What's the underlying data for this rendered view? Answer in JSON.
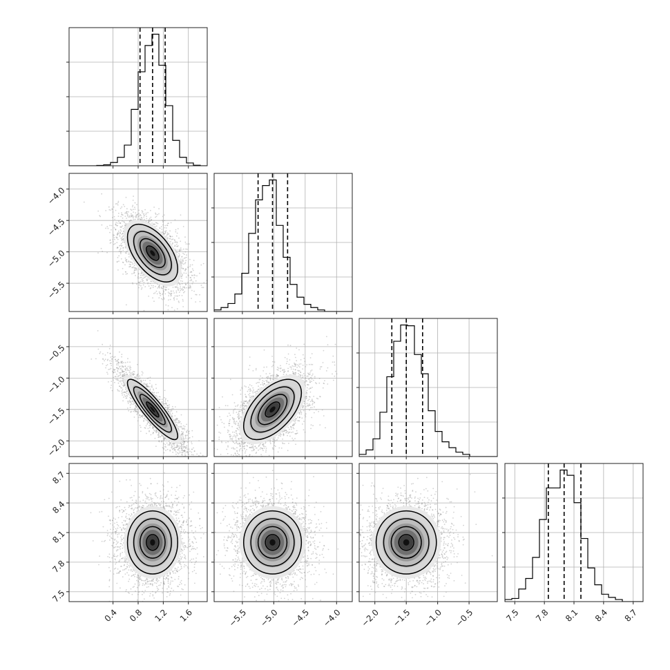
{
  "chart_data": {
    "type": "corner",
    "parameters": [
      {
        "range": [
          -0.3,
          1.9
        ],
        "ticks": [
          0.4,
          0.8,
          1.2,
          1.6
        ],
        "tick_labels": [
          "0.4",
          "0.8",
          "1.2",
          "1.6"
        ],
        "quantiles": [
          0.83,
          1.03,
          1.23
        ],
        "mean": 1.03,
        "sd": 0.2
      },
      {
        "range": [
          -5.95,
          -3.75
        ],
        "ticks": [
          -5.5,
          -5.0,
          -4.5,
          -4.0
        ],
        "tick_labels": [
          "−5.5",
          "−5.0",
          "−4.5",
          "−4.0"
        ],
        "quantiles": [
          -5.25,
          -5.02,
          -4.78
        ],
        "mean": -5.02,
        "sd": 0.23
      },
      {
        "range": [
          -2.25,
          -0.05
        ],
        "ticks": [
          -2.0,
          -1.5,
          -1.0,
          -0.5
        ],
        "tick_labels": [
          "−2.0",
          "−1.5",
          "−1.0",
          "−0.5"
        ],
        "quantiles": [
          -1.73,
          -1.5,
          -1.24
        ],
        "mean": -1.5,
        "sd": 0.24
      },
      {
        "range": [
          7.4,
          8.8
        ],
        "ticks": [
          7.5,
          7.8,
          8.1,
          8.4,
          8.7
        ],
        "tick_labels": [
          "7.5",
          "7.8",
          "8.1",
          "8.4",
          "8.7"
        ],
        "quantiles": [
          7.84,
          8.0,
          8.17
        ],
        "mean": 8.0,
        "sd": 0.16
      }
    ],
    "histograms": [
      {
        "edges": [
          -0.3,
          -0.19,
          -0.08,
          0.03,
          0.14,
          0.25,
          0.36,
          0.47,
          0.58,
          0.69,
          0.8,
          0.91,
          1.02,
          1.13,
          1.24,
          1.35,
          1.46,
          1.57,
          1.68,
          1.79,
          1.9
        ],
        "counts": [
          0,
          0,
          0,
          0,
          0.4,
          1.0,
          3.5,
          9,
          22,
          60,
          100,
          128,
          140,
          107,
          64,
          27,
          9,
          3,
          0.6,
          0
        ]
      },
      {
        "edges": [
          -5.95,
          -5.84,
          -5.73,
          -5.62,
          -5.51,
          -5.4,
          -5.29,
          -5.18,
          -5.07,
          -4.96,
          -4.85,
          -4.74,
          -4.63,
          -4.52,
          -4.41,
          -4.3,
          -4.19,
          -4.08,
          -3.97,
          -3.86,
          -3.75
        ],
        "counts": [
          2,
          5,
          10,
          22,
          48,
          98,
          140,
          158,
          165,
          108,
          68,
          34,
          18,
          9,
          5,
          2,
          0,
          0,
          0,
          0
        ]
      },
      {
        "edges": [
          -2.25,
          -2.14,
          -2.03,
          -1.92,
          -1.81,
          -1.7,
          -1.59,
          -1.48,
          -1.37,
          -1.26,
          -1.15,
          -1.04,
          -0.93,
          -0.82,
          -0.71,
          -0.6,
          -0.49,
          -0.38,
          -0.27,
          -0.16,
          -0.05
        ],
        "counts": [
          3,
          9,
          24,
          60,
          108,
          156,
          178,
          177,
          138,
          112,
          62,
          34,
          20,
          12,
          6,
          3,
          0,
          0,
          0,
          0
        ]
      },
      {
        "edges": [
          7.4,
          7.47,
          7.54,
          7.61,
          7.68,
          7.75,
          7.82,
          7.89,
          7.96,
          8.03,
          8.1,
          8.17,
          8.24,
          8.31,
          8.38,
          8.45,
          8.52,
          8.59,
          8.66,
          8.73,
          8.8
        ],
        "counts": [
          2,
          3,
          12,
          22,
          42,
          78,
          108,
          108,
          125,
          120,
          94,
          60,
          32,
          16,
          7,
          4,
          2,
          0,
          0,
          0
        ]
      }
    ],
    "correlations": [
      [
        1,
        -0.55,
        -0.88,
        0.0
      ],
      [
        -0.55,
        1,
        0.55,
        0.0
      ],
      [
        -0.88,
        0.55,
        1,
        0.0
      ],
      [
        0.0,
        0.0,
        0.0,
        1
      ]
    ],
    "contour_levels_sigma": [
      0.5,
      1.0,
      1.5,
      2.0
    ],
    "grid": true
  }
}
